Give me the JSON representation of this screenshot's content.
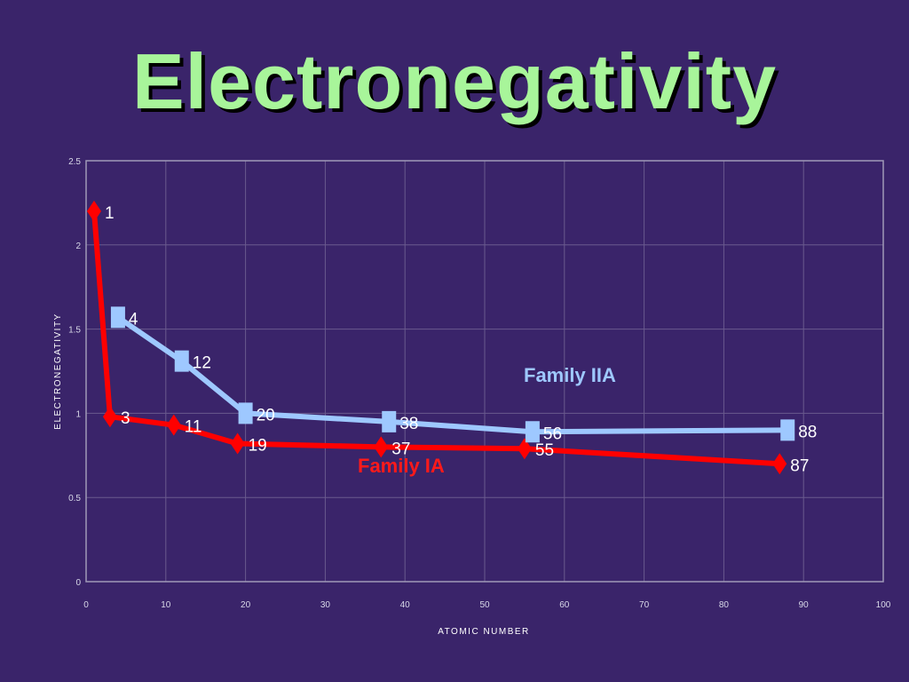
{
  "slide": {
    "title": "Electronegativity"
  },
  "chart_data": {
    "type": "line",
    "title": "",
    "xlabel": "ATOMIC NUMBER",
    "ylabel": "ELECTRONEGATIVITY",
    "xlim": [
      0,
      100
    ],
    "ylim": [
      0,
      2.5
    ],
    "x_ticks": [
      "0",
      "10",
      "20",
      "30",
      "40",
      "50",
      "60",
      "70",
      "80",
      "90",
      "100"
    ],
    "y_ticks": [
      "0",
      "0.5",
      "1",
      "1.5",
      "2",
      "2.5"
    ],
    "grid": true,
    "series": [
      {
        "name": "Family IA",
        "color": "#ff0000",
        "marker": "diamond",
        "points": [
          {
            "x": 1,
            "y": 2.2,
            "label": "1"
          },
          {
            "x": 3,
            "y": 0.98,
            "label": "3"
          },
          {
            "x": 11,
            "y": 0.93,
            "label": "11"
          },
          {
            "x": 19,
            "y": 0.82,
            "label": "19"
          },
          {
            "x": 37,
            "y": 0.8,
            "label": "37"
          },
          {
            "x": 55,
            "y": 0.79,
            "label": "55"
          },
          {
            "x": 87,
            "y": 0.7,
            "label": "87"
          }
        ]
      },
      {
        "name": "Family IIA",
        "color": "#9ec8ff",
        "marker": "square",
        "points": [
          {
            "x": 4,
            "y": 1.57,
            "label": "4"
          },
          {
            "x": 12,
            "y": 1.31,
            "label": "12"
          },
          {
            "x": 20,
            "y": 1.0,
            "label": "20"
          },
          {
            "x": 38,
            "y": 0.95,
            "label": "38"
          },
          {
            "x": 56,
            "y": 0.89,
            "label": "56"
          },
          {
            "x": 88,
            "y": 0.9,
            "label": "88"
          }
        ]
      }
    ]
  }
}
